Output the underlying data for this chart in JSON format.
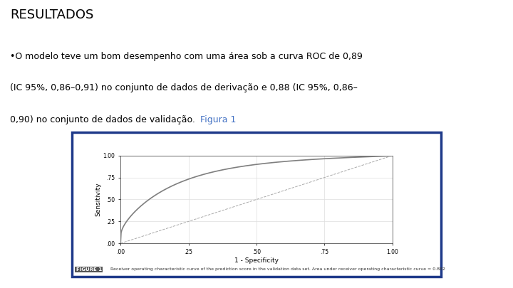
{
  "title": "RESULTADOS",
  "bullet_line1": "•O modelo teve um bom desempenho com uma área sob a curva ROC de 0,89",
  "bullet_line2": "(IC 95%, 0,86–0,91) no conjunto de dados de derivação e 0,88 (IC 95%, 0,86–",
  "bullet_line3": "0,90) no conjunto de dados de validação. ",
  "figura_text": "Figura 1",
  "figure_caption_bold": "FIGURE 1",
  "figure_caption": "Receiver operating characteristic curve of the prediction score in the validation data set. Area under receiver operating characteristic curve = 0.882",
  "bg_color": "#ffffff",
  "title_color": "#000000",
  "body_color": "#000000",
  "figura_color": "#4472c4",
  "box_border_color": "#1f3a8a",
  "roc_color": "#7f7f7f",
  "diag_color": "#aaaaaa",
  "xlabel": "1 - Specificity",
  "ylabel": "Sensitivity",
  "xticks": [
    0.0,
    0.25,
    0.5,
    0.75,
    1.0
  ],
  "yticks": [
    0.0,
    0.25,
    0.5,
    0.75,
    1.0
  ],
  "xtick_labels": [
    ".00",
    ".25",
    ".50",
    ".75",
    "1.00"
  ],
  "ytick_labels": [
    ".00",
    ".25",
    ".50",
    ".75",
    "1.00"
  ],
  "title_fontsize": 13,
  "body_fontsize": 9,
  "caption_bold_fontsize": 5,
  "caption_fontsize": 4.5
}
